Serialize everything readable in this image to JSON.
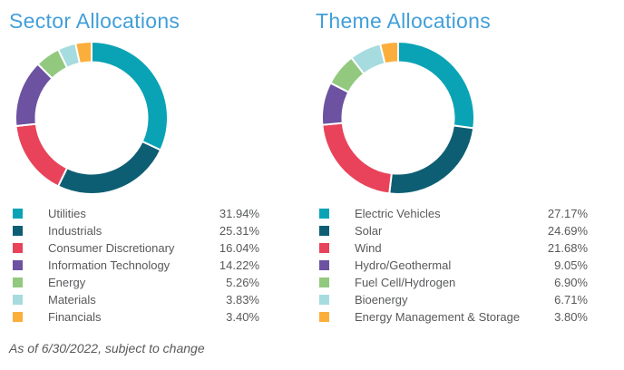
{
  "footnote": "As of 6/30/2022, subject to change",
  "style": {
    "title_color": "#419FD9",
    "text_color": "#58595B",
    "slice_gap_color": "#FFFFFF"
  },
  "chart_data": [
    {
      "type": "pie",
      "donut": true,
      "title": "Sector Allocations",
      "start_angle_deg": 0,
      "direction": "clockwise",
      "legend_position": "bottom",
      "categories": [
        "Utilities",
        "Industrials",
        "Consumer Discretionary",
        "Information Technology",
        "Energy",
        "Materials",
        "Financials"
      ],
      "values": [
        31.94,
        25.31,
        16.04,
        14.22,
        5.26,
        3.83,
        3.4
      ],
      "labels": [
        "31.94%",
        "25.31%",
        "16.04%",
        "14.22%",
        "5.26%",
        "3.83%",
        "3.40%"
      ],
      "colors": [
        "#0AA3B5",
        "#0E5E73",
        "#E8435A",
        "#6C52A1",
        "#92C97F",
        "#A6DBDF",
        "#FBAE3C"
      ]
    },
    {
      "type": "pie",
      "donut": true,
      "title": "Theme Allocations",
      "start_angle_deg": 0,
      "direction": "clockwise",
      "legend_position": "bottom",
      "categories": [
        "Electric Vehicles",
        "Solar",
        "Wind",
        "Hydro/Geothermal",
        "Fuel Cell/Hydrogen",
        "Bioenergy",
        "Energy Management & Storage"
      ],
      "values": [
        27.17,
        24.69,
        21.68,
        9.05,
        6.9,
        6.71,
        3.8
      ],
      "labels": [
        "27.17%",
        "24.69%",
        "21.68%",
        "9.05%",
        "6.90%",
        "6.71%",
        "3.80%"
      ],
      "colors": [
        "#0AA3B5",
        "#0E5E73",
        "#E8435A",
        "#6C52A1",
        "#92C97F",
        "#A6DBDF",
        "#FBAE3C"
      ]
    }
  ]
}
